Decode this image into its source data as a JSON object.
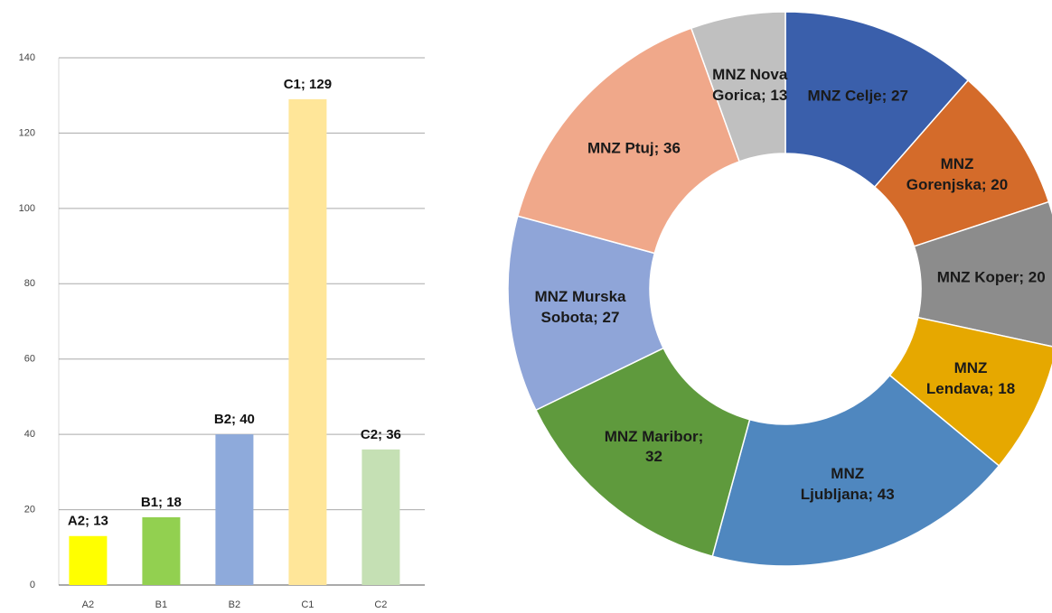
{
  "chart_data": [
    {
      "type": "bar",
      "categories": [
        "A2",
        "B1",
        "B2",
        "C1",
        "C2"
      ],
      "values": [
        13,
        18,
        40,
        129,
        36
      ],
      "value_labels": [
        "A2; 13",
        "B1; 18",
        "B2; 40",
        "C1; 129",
        "C2; 36"
      ],
      "colors": [
        "#ffff00",
        "#92d050",
        "#8eaadb",
        "#ffe699",
        "#c5e0b4"
      ],
      "ylim": [
        0,
        140
      ],
      "yticks": [
        0,
        20,
        40,
        60,
        80,
        100,
        120,
        140
      ],
      "grid": true
    },
    {
      "type": "donut",
      "categories": [
        "MNZ Celje",
        "MNZ Gorenjska",
        "MNZ Koper",
        "MNZ Lendava",
        "MNZ Ljubljana",
        "MNZ Maribor",
        "MNZ Murska Sobota",
        "MNZ Ptuj",
        "MNZ Nova Gorica"
      ],
      "values": [
        27,
        20,
        20,
        18,
        43,
        32,
        27,
        36,
        13
      ],
      "value_labels": [
        "MNZ Celje; 27",
        "MNZ Gorenjska; 20",
        "MNZ Koper; 20",
        "MNZ Lendava; 18",
        "MNZ Ljubljana; 43",
        "MNZ Maribor; 32",
        "MNZ Murska Sobota; 27",
        "MNZ Ptuj; 36",
        "MNZ Nova Gorica; 13"
      ],
      "colors": [
        "#3a5fab",
        "#d46b2a",
        "#8c8c8c",
        "#e6a800",
        "#4f87bf",
        "#5f9a3d",
        "#8fa5d8",
        "#f0a88a",
        "#c0c0c0"
      ]
    }
  ]
}
